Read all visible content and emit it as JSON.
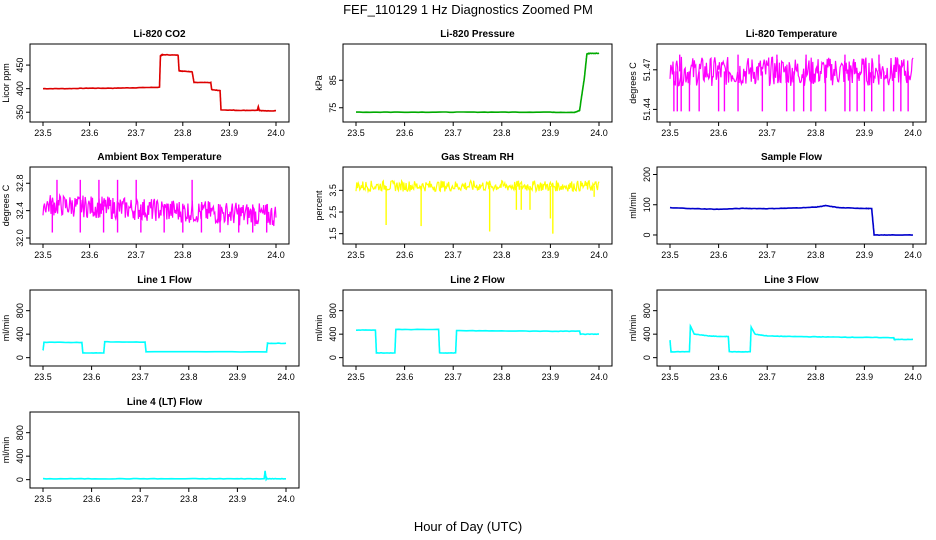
{
  "figure": {
    "title": "FEF_110129  1 Hz Diagnostics Zoomed PM",
    "xlabel": "Hour of Day (UTC)"
  },
  "chart_data": [
    {
      "type": "line",
      "title": "Li-820 CO2",
      "ylabel": "Licor ppm",
      "color": "#dd0000",
      "xlim": [
        23.5,
        24.0
      ],
      "ylim": [
        342,
        482
      ],
      "xticks": [
        "23.5",
        "23.6",
        "23.7",
        "23.8",
        "23.9",
        "24.0"
      ],
      "yticks": [
        "350",
        "400",
        "450"
      ],
      "series": [
        {
          "x": [
            23.5,
            23.55,
            23.6,
            23.65,
            23.7,
            23.75,
            23.752,
            23.758,
            23.79,
            23.792,
            23.8,
            23.82,
            23.824,
            23.86,
            23.862,
            23.88,
            23.882,
            23.92,
            23.96,
            23.962,
            23.964,
            23.97,
            24.0
          ],
          "y": [
            400,
            400,
            401,
            401,
            402,
            403,
            470,
            472,
            471,
            438,
            437,
            436,
            413,
            413,
            398,
            396,
            355,
            354,
            354,
            362,
            354,
            353,
            353
          ]
        }
      ]
    },
    {
      "type": "line",
      "title": "Li-820 Pressure",
      "ylabel": "kPa",
      "color": "#00aa00",
      "xlim": [
        23.5,
        24.0
      ],
      "ylim": [
        72,
        96
      ],
      "xticks": [
        "23.5",
        "23.6",
        "23.7",
        "23.8",
        "23.9",
        "24.0"
      ],
      "yticks": [
        "75",
        "85"
      ],
      "series": [
        {
          "x": [
            23.5,
            23.6,
            23.7,
            23.8,
            23.9,
            23.95,
            23.96,
            23.97,
            23.975,
            23.98,
            24.0
          ],
          "y": [
            73.4,
            73.4,
            73.4,
            73.4,
            73.4,
            73.3,
            74,
            86,
            94.5,
            94.8,
            94.8
          ]
        }
      ]
    },
    {
      "type": "line",
      "title": "Li-820 Temperature",
      "ylabel": "degrees C",
      "color": "#ff00ff",
      "xlim": [
        23.5,
        24.0
      ],
      "ylim": [
        51.435,
        51.485
      ],
      "xticks": [
        "23.5",
        "23.6",
        "23.7",
        "23.8",
        "23.9",
        "24.0"
      ],
      "yticks": [
        "51.44",
        "51.47"
      ],
      "band": [
        51.4578,
        51.4798
      ],
      "spikes_low": {
        "value": 51.4385,
        "x": [
          23.508,
          23.515,
          23.523,
          23.54,
          23.56,
          23.6,
          23.612,
          23.64,
          23.69,
          23.74,
          23.755,
          23.775,
          23.79,
          23.82,
          23.86,
          23.87,
          23.885,
          23.9,
          23.915,
          23.94,
          23.96,
          23.975,
          23.99
        ]
      },
      "spikes_high": {
        "value": 51.4815,
        "x": [
          23.52,
          23.64,
          23.72,
          23.78,
          23.86,
          23.93
        ]
      }
    },
    {
      "type": "line",
      "title": "Ambient Box Temperature",
      "ylabel": "degrees C",
      "color": "#ff00ff",
      "xlim": [
        23.5,
        24.0
      ],
      "ylim": [
        32.0,
        32.95
      ],
      "xticks": [
        "23.5",
        "23.6",
        "23.7",
        "23.8",
        "23.9",
        "24.0"
      ],
      "yticks": [
        "32.0",
        "32.4",
        "32.8"
      ],
      "band_start": [
        32.33,
        32.65
      ],
      "band_end": [
        32.15,
        32.5
      ],
      "spikes_low": {
        "value": 32.08,
        "x": [
          23.52,
          23.58,
          23.63,
          23.66,
          23.71,
          23.76,
          23.8,
          23.84,
          23.88,
          23.92,
          23.95,
          23.98
        ]
      },
      "spikes_high": {
        "value": 32.85,
        "x": [
          23.53,
          23.58,
          23.62,
          23.66,
          23.7,
          23.82
        ]
      }
    },
    {
      "type": "line",
      "title": "Gas Stream RH",
      "ylabel": "percent",
      "color": "#ffff00",
      "xlim": [
        23.5,
        24.0
      ],
      "ylim": [
        1.3,
        4.3
      ],
      "xticks": [
        "23.5",
        "23.6",
        "23.7",
        "23.8",
        "23.9",
        "24.0"
      ],
      "yticks": [
        "1.5",
        "2.5",
        "3.5"
      ],
      "band": [
        3.45,
        3.95
      ],
      "dips": [
        [
          23.562,
          1.9
        ],
        [
          23.634,
          1.85
        ],
        [
          23.775,
          1.6
        ],
        [
          23.83,
          2.6
        ],
        [
          23.84,
          2.6
        ],
        [
          23.858,
          2.6
        ],
        [
          23.9,
          2.2
        ],
        [
          23.905,
          1.5
        ],
        [
          23.99,
          3.2
        ]
      ]
    },
    {
      "type": "line",
      "title": "Sample Flow",
      "ylabel": "ml/min",
      "color": "#0000cc",
      "xlim": [
        23.5,
        24.0
      ],
      "ylim": [
        -10,
        205
      ],
      "xticks": [
        "23.5",
        "23.6",
        "23.7",
        "23.8",
        "23.9",
        "24.0"
      ],
      "yticks": [
        "0",
        "100",
        "200"
      ],
      "series": [
        {
          "x": [
            23.5,
            23.55,
            23.6,
            23.65,
            23.7,
            23.75,
            23.8,
            23.82,
            23.85,
            23.9,
            23.915,
            23.92,
            23.95,
            24.0
          ],
          "y": [
            90,
            87,
            85,
            88,
            87,
            89,
            92,
            97,
            90,
            88,
            87,
            0,
            0,
            0
          ]
        }
      ]
    },
    {
      "type": "line",
      "title": "Line 1 Flow",
      "ylabel": "ml/min",
      "color": "#00ffff",
      "xlim": [
        23.5,
        24.0
      ],
      "ylim": [
        -40,
        1050
      ],
      "xticks": [
        "23.5",
        "23.6",
        "23.7",
        "23.8",
        "23.9",
        "24.0"
      ],
      "yticks": [
        "0",
        "400",
        "800"
      ],
      "series": [
        {
          "x": [
            23.5,
            23.502,
            23.58,
            23.582,
            23.625,
            23.627,
            23.71,
            23.712,
            23.96,
            23.962,
            24.0
          ],
          "y": [
            120,
            260,
            260,
            80,
            80,
            270,
            265,
            100,
            100,
            245,
            245
          ]
        }
      ]
    },
    {
      "type": "line",
      "title": "Line 2 Flow",
      "ylabel": "ml/min",
      "color": "#00ffff",
      "xlim": [
        23.5,
        24.0
      ],
      "ylim": [
        -40,
        1050
      ],
      "xticks": [
        "23.5",
        "23.6",
        "23.7",
        "23.8",
        "23.9",
        "24.0"
      ],
      "yticks": [
        "0",
        "400",
        "800"
      ],
      "series": [
        {
          "x": [
            23.5,
            23.54,
            23.542,
            23.58,
            23.582,
            23.67,
            23.672,
            23.705,
            23.707,
            23.8,
            23.9,
            23.96,
            23.962,
            24.0
          ],
          "y": [
            470,
            470,
            80,
            80,
            480,
            480,
            80,
            80,
            460,
            455,
            450,
            450,
            400,
            400
          ]
        }
      ]
    },
    {
      "type": "line",
      "title": "Line 3 Flow",
      "ylabel": "ml/min",
      "color": "#00ffff",
      "xlim": [
        23.5,
        24.0
      ],
      "ylim": [
        -40,
        1050
      ],
      "xticks": [
        "23.5",
        "23.6",
        "23.7",
        "23.8",
        "23.9",
        "24.0"
      ],
      "yticks": [
        "0",
        "400",
        "800"
      ],
      "series": [
        {
          "x": [
            23.5,
            23.502,
            23.504,
            23.54,
            23.542,
            23.55,
            23.58,
            23.6,
            23.62,
            23.622,
            23.665,
            23.667,
            23.675,
            23.7,
            23.75,
            23.8,
            23.85,
            23.9,
            23.96,
            23.962,
            24.0
          ],
          "y": [
            300,
            100,
            100,
            100,
            540,
            400,
            370,
            360,
            360,
            100,
            100,
            520,
            400,
            370,
            360,
            355,
            350,
            345,
            340,
            310,
            310
          ]
        }
      ]
    },
    {
      "type": "line",
      "title": "Line 4 (LT) Flow",
      "ylabel": "ml/min",
      "color": "#00ffff",
      "xlim": [
        23.5,
        24.0
      ],
      "ylim": [
        -40,
        1050
      ],
      "xticks": [
        "23.5",
        "23.6",
        "23.7",
        "23.8",
        "23.9",
        "24.0"
      ],
      "yticks": [
        "0",
        "400",
        "800"
      ],
      "series": [
        {
          "x": [
            23.5,
            23.6,
            23.7,
            23.8,
            23.9,
            23.955,
            23.957,
            23.959,
            23.961,
            24.0
          ],
          "y": [
            15,
            15,
            15,
            15,
            15,
            15,
            150,
            15,
            15,
            15
          ]
        }
      ]
    }
  ]
}
